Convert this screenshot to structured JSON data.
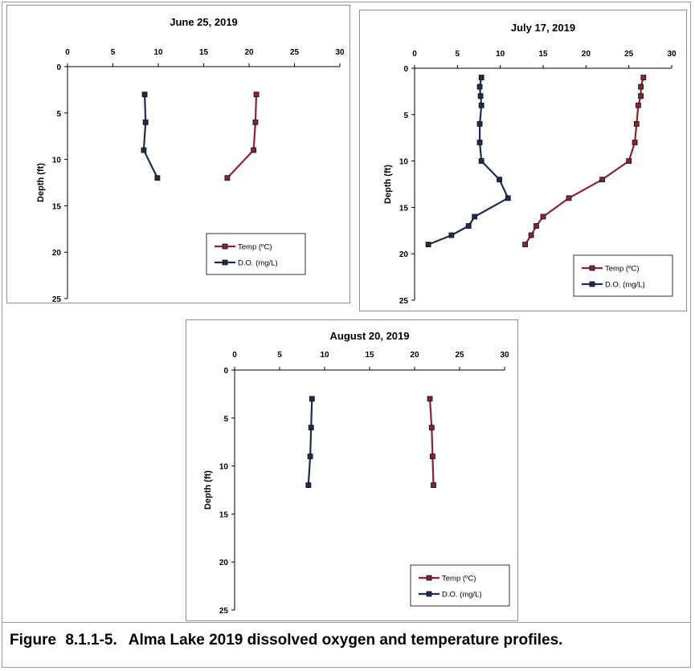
{
  "chart_data": [
    {
      "type": "line",
      "title": "June 25, 2019",
      "ylabel": "Depth (ft)",
      "xlim": [
        0,
        30
      ],
      "ylim": [
        0,
        25
      ],
      "y_inverted": true,
      "x_ticks": [
        "0",
        "5",
        "10",
        "15",
        "20",
        "25",
        "30"
      ],
      "y_ticks": [
        "0",
        "5",
        "10",
        "15",
        "20",
        "25"
      ],
      "legend_position": "bottom-right",
      "series": [
        {
          "name": "Temp (ºC)",
          "color": "#8b2331",
          "points": [
            [
              20.8,
              3
            ],
            [
              20.7,
              6
            ],
            [
              20.5,
              9
            ],
            [
              17.6,
              12
            ]
          ]
        },
        {
          "name": "D.O. (mg/L)",
          "color": "#1c2e4d",
          "points": [
            [
              8.5,
              3
            ],
            [
              8.6,
              6
            ],
            [
              8.4,
              9
            ],
            [
              9.9,
              12
            ]
          ]
        }
      ]
    },
    {
      "type": "line",
      "title": "July 17, 2019",
      "ylabel": "Depth (ft)",
      "xlim": [
        0,
        30
      ],
      "ylim": [
        0,
        25
      ],
      "y_inverted": true,
      "x_ticks": [
        "0",
        "5",
        "10",
        "15",
        "20",
        "25",
        "30"
      ],
      "y_ticks": [
        "0",
        "5",
        "10",
        "15",
        "20",
        "25"
      ],
      "legend_position": "bottom-right",
      "series": [
        {
          "name": "Temp (ºC)",
          "color": "#8b2331",
          "points": [
            [
              26.7,
              1
            ],
            [
              26.4,
              2
            ],
            [
              26.4,
              3
            ],
            [
              26.1,
              4
            ],
            [
              25.9,
              6
            ],
            [
              25.7,
              8
            ],
            [
              25.0,
              10
            ],
            [
              21.9,
              12
            ],
            [
              18.0,
              14
            ],
            [
              15.0,
              16
            ],
            [
              14.2,
              17
            ],
            [
              13.6,
              18
            ],
            [
              12.9,
              19
            ]
          ]
        },
        {
          "name": "D.O. (mg/L)",
          "color": "#1c2e4d",
          "points": [
            [
              7.8,
              1
            ],
            [
              7.6,
              2
            ],
            [
              7.7,
              3
            ],
            [
              7.8,
              4
            ],
            [
              7.6,
              6
            ],
            [
              7.6,
              8
            ],
            [
              7.8,
              10
            ],
            [
              9.9,
              12
            ],
            [
              10.9,
              14
            ],
            [
              7.0,
              16
            ],
            [
              6.3,
              17
            ],
            [
              4.3,
              18
            ],
            [
              1.6,
              19
            ]
          ]
        }
      ]
    },
    {
      "type": "line",
      "title": "August 20, 2019",
      "ylabel": "Depth (ft)",
      "xlim": [
        0,
        30
      ],
      "ylim": [
        0,
        25
      ],
      "y_inverted": true,
      "x_ticks": [
        "0",
        "5",
        "10",
        "15",
        "20",
        "25",
        "30"
      ],
      "y_ticks": [
        "0",
        "5",
        "10",
        "15",
        "20",
        "25"
      ],
      "legend_position": "bottom-right",
      "series": [
        {
          "name": "Temp (ºC)",
          "color": "#8b2331",
          "points": [
            [
              21.7,
              3
            ],
            [
              21.9,
              6
            ],
            [
              22.0,
              9
            ],
            [
              22.1,
              12
            ]
          ]
        },
        {
          "name": "D.O. (mg/L)",
          "color": "#1c2e4d",
          "points": [
            [
              8.6,
              3
            ],
            [
              8.5,
              6
            ],
            [
              8.4,
              9
            ],
            [
              8.2,
              12
            ]
          ]
        }
      ]
    }
  ],
  "caption": {
    "number": "Figure 8.1.1-5.",
    "text": "Alma Lake 2019 dissolved oxygen and temperature profiles."
  }
}
